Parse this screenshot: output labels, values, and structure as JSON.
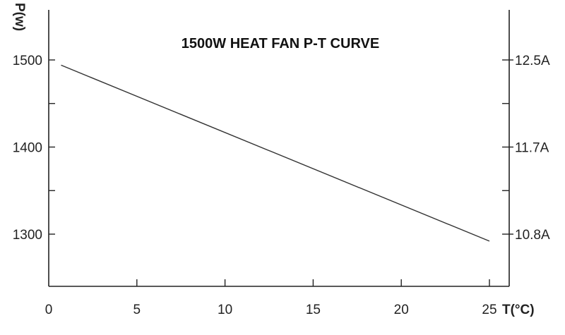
{
  "chart_data": {
    "type": "line",
    "title": "1500W HEAT FAN P-T CURVE",
    "xlabel": "T(°C)",
    "ylabel": "P(w)",
    "xlim": [
      0,
      26
    ],
    "ylim": [
      1241,
      1560
    ],
    "x_ticks": [
      0,
      5,
      10,
      15,
      20,
      25
    ],
    "x_tick_labels": [
      "0",
      "5",
      "10",
      "15",
      "20",
      "25"
    ],
    "y_ticks": [
      1300,
      1400,
      1500
    ],
    "y_tick_labels": [
      "1300",
      "1400",
      "1500"
    ],
    "y_minor_ticks": [
      1350,
      1450
    ],
    "y2_ticks": [
      1300,
      1400,
      1500
    ],
    "y2_tick_labels": [
      "10.8A",
      "11.7A",
      "12.5A"
    ],
    "y2_minor_ticks": [
      1350,
      1450
    ],
    "grid": false,
    "legend": "none",
    "series": [
      {
        "x": [
          0.7,
          25
        ],
        "y": [
          1494,
          1292
        ]
      }
    ]
  }
}
